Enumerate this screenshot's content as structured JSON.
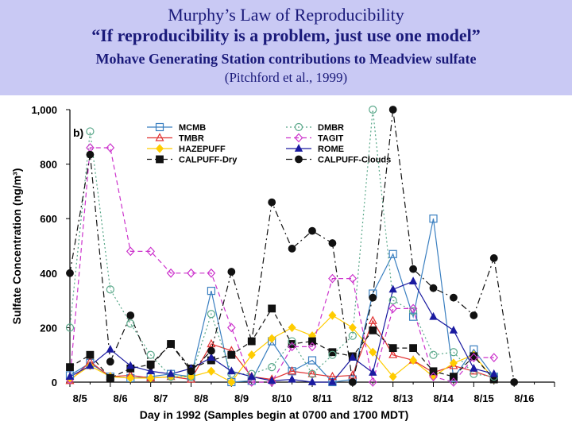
{
  "header": {
    "title": "Murphy’s Law of Reproducibility",
    "quote": "“If reproducibility is a problem, just use one model”",
    "subtitle": "Mohave Generating Station contributions to Meadview sulfate",
    "citation": "(Pitchford et al., 1999)"
  },
  "chart_data": {
    "type": "line",
    "panel_label": "b)",
    "xlabel": "Day in 1992 (Samples begin at 0700 and 1700 MDT)",
    "ylabel": "Sulfate Concentration (ng/m³)",
    "ylim": [
      0,
      1000
    ],
    "xlim": [
      0,
      24
    ],
    "yticks": [
      0,
      200,
      400,
      600,
      800,
      1000
    ],
    "ytick_labels": [
      "0",
      "200",
      "400",
      "600",
      "800",
      "1,000"
    ],
    "day_labels": [
      "8/5",
      "8/6",
      "8/7",
      "8/8",
      "8/9",
      "8/10",
      "8/11",
      "8/12",
      "8/13",
      "8/14",
      "8/15",
      "8/16"
    ],
    "grid": false,
    "series": [
      {
        "name": "MCMB",
        "color": "#3a7fc0",
        "dash": "none",
        "marker": "square-open",
        "values": [
          25,
          70,
          20,
          15,
          20,
          30,
          20,
          335,
          0,
          5,
          150,
          40,
          80,
          0,
          10,
          325,
          470,
          240,
          600,
          15,
          120,
          20
        ]
      },
      {
        "name": "TMBR",
        "color": "#e03030",
        "dash": "none",
        "marker": "triangle-open",
        "values": [
          5,
          75,
          20,
          25,
          15,
          20,
          10,
          140,
          115,
          20,
          10,
          40,
          30,
          20,
          25,
          225,
          100,
          80,
          35,
          60,
          40,
          15
        ]
      },
      {
        "name": "HAZEPUFF",
        "color": "#ffcc00",
        "dash": "none",
        "marker": "diamond-filled",
        "values": [
          10,
          60,
          20,
          15,
          15,
          20,
          20,
          40,
          0,
          100,
          160,
          200,
          170,
          245,
          200,
          110,
          20,
          80,
          20,
          70,
          100,
          10
        ]
      },
      {
        "name": "CALPUFF-Dry",
        "color": "#111111",
        "dash": "6,4",
        "marker": "square-filled",
        "values": [
          55,
          100,
          15,
          50,
          65,
          140,
          50,
          80,
          100,
          150,
          270,
          140,
          150,
          110,
          95,
          190,
          125,
          125,
          40,
          20,
          95,
          10
        ]
      },
      {
        "name": "DMBR",
        "color": "#5aa88a",
        "dash": "2,3",
        "marker": "circle-open",
        "values": [
          200,
          920,
          340,
          215,
          100,
          20,
          20,
          250,
          30,
          30,
          55,
          150,
          30,
          100,
          170,
          1000,
          300,
          260,
          100,
          110,
          30,
          20
        ]
      },
      {
        "name": "TAGIT",
        "color": "#cc33cc",
        "dash": "6,4",
        "marker": "diamond-open",
        "values": [
          10,
          860,
          860,
          480,
          480,
          400,
          400,
          400,
          200,
          0,
          0,
          130,
          130,
          380,
          380,
          0,
          270,
          270,
          20,
          0,
          90,
          90
        ]
      },
      {
        "name": "ROME",
        "color": "#1a1aa0",
        "dash": "none",
        "marker": "triangle-filled",
        "values": [
          20,
          60,
          120,
          60,
          40,
          30,
          50,
          90,
          40,
          20,
          5,
          10,
          0,
          0,
          90,
          35,
          340,
          370,
          240,
          190,
          50,
          30
        ]
      },
      {
        "name": "CALPUFF-Clouds",
        "color": "#111111",
        "dash": "8,4,2,4",
        "marker": "circle-filled",
        "values": [
          400,
          835,
          75,
          245,
          60,
          140,
          40,
          115,
          405,
          150,
          660,
          490,
          555,
          510,
          0,
          310,
          1000,
          415,
          345,
          310,
          245,
          455,
          0
        ]
      }
    ]
  }
}
